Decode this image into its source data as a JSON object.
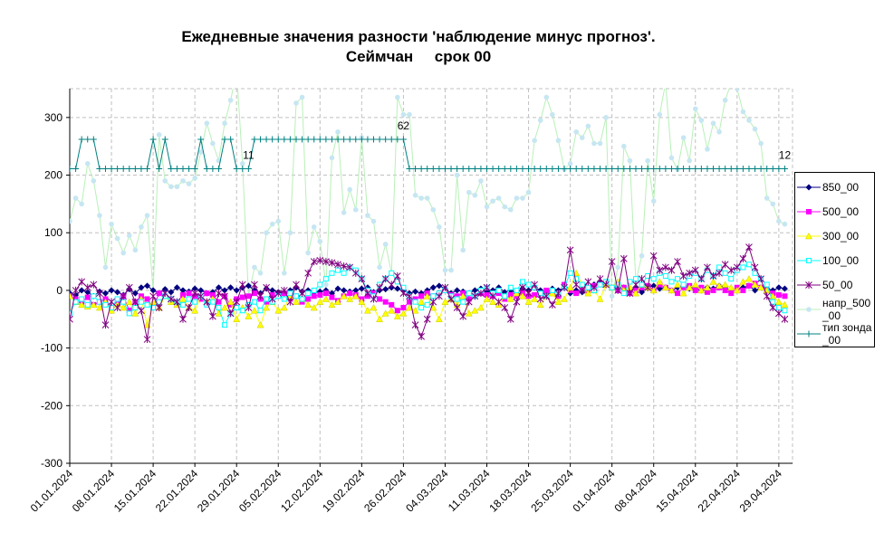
{
  "chart_data": {
    "type": "line",
    "title": "Ежедневные значения разности 'наблюдение минус прогноз'.",
    "subtitle": "Сеймчан     срок 00",
    "categories": [
      "01.01.2024",
      null,
      null,
      null,
      null,
      null,
      null,
      "08.01.2024",
      null,
      null,
      null,
      null,
      null,
      null,
      "15.01.2024",
      null,
      null,
      null,
      null,
      null,
      null,
      "22.01.2024",
      null,
      null,
      null,
      null,
      null,
      null,
      "29.01.2024",
      null,
      null,
      null,
      null,
      null,
      null,
      "05.02.2024",
      null,
      null,
      null,
      null,
      null,
      null,
      "12.02.2024",
      null,
      null,
      null,
      null,
      null,
      null,
      "19.02.2024",
      null,
      null,
      null,
      null,
      null,
      null,
      "26.02.2024",
      null,
      null,
      null,
      null,
      null,
      null,
      "04.03.2024",
      null,
      null,
      null,
      null,
      null,
      null,
      "11.03.2024",
      null,
      null,
      null,
      null,
      null,
      null,
      "18.03.2024",
      null,
      null,
      null,
      null,
      null,
      null,
      "25.03.2024",
      null,
      null,
      null,
      null,
      null,
      null,
      "01.04.2024",
      null,
      null,
      null,
      null,
      null,
      null,
      "08.04.2024",
      null,
      null,
      null,
      null,
      null,
      null,
      "15.04.2024",
      null,
      null,
      null,
      null,
      null,
      null,
      "22.04.2024",
      null,
      null,
      null,
      null,
      null,
      null,
      "29.04.2024",
      null
    ],
    "ylim": [
      -300,
      350
    ],
    "yticks": [
      -300,
      -200,
      -100,
      0,
      100,
      200,
      300
    ],
    "grid": true,
    "legend": "right",
    "series": [
      {
        "name": "850_00",
        "color": "#000080",
        "marker": "diamond",
        "values": [
          -5,
          -8,
          0,
          -3,
          -10,
          -2,
          -5,
          0,
          -3,
          -8,
          2,
          -5,
          5,
          8,
          0,
          -5,
          2,
          -3,
          5,
          0,
          -2,
          3,
          0,
          -5,
          -3,
          5,
          0,
          5,
          0,
          5,
          8,
          0,
          -5,
          3,
          0,
          -3,
          -5,
          0,
          5,
          -2,
          0,
          -3,
          -2,
          0,
          -5,
          3,
          0,
          -2,
          0,
          3,
          5,
          -3,
          0,
          2,
          5,
          3,
          0,
          -5,
          -2,
          -5,
          0,
          5,
          8,
          3,
          -5,
          0,
          -2,
          -5,
          0,
          3,
          -3,
          0,
          5,
          -3,
          0,
          -5,
          3,
          0,
          5,
          0,
          -3,
          3,
          0,
          5,
          -5,
          0,
          -3,
          5,
          10,
          15,
          10,
          5,
          8,
          5,
          0,
          5,
          -3,
          5,
          8,
          3,
          5,
          0,
          5,
          8,
          3,
          5,
          0,
          5,
          3,
          8,
          5,
          0,
          3,
          5,
          8,
          0,
          5,
          3,
          0,
          5,
          3
        ]
      },
      {
        "name": "500_00",
        "color": "#ff00ff",
        "marker": "square",
        "values": [
          -10,
          -15,
          -20,
          -12,
          -25,
          -20,
          -15,
          -30,
          -18,
          -10,
          -35,
          -20,
          -10,
          -15,
          -30,
          -5,
          -10,
          -15,
          -20,
          -8,
          -5,
          -10,
          -15,
          -5,
          -8,
          -20,
          -10,
          -25,
          -15,
          -12,
          -10,
          -5,
          -15,
          -20,
          -8,
          -10,
          -5,
          -15,
          -10,
          -20,
          -15,
          -10,
          -8,
          -5,
          -12,
          -18,
          -10,
          -5,
          -8,
          -15,
          -10,
          -5,
          -15,
          -20,
          -25,
          -35,
          -30,
          -20,
          -15,
          -10,
          -5,
          -10,
          -5,
          0,
          -8,
          -10,
          -5,
          -15,
          -10,
          -5,
          -8,
          -10,
          -5,
          -15,
          -8,
          -10,
          -5,
          -10,
          -8,
          -5,
          0,
          -5,
          -10,
          10,
          0,
          -5,
          5,
          0,
          8,
          10,
          12,
          5,
          0,
          5,
          -5,
          0,
          5,
          8,
          0,
          10,
          5,
          0,
          -5,
          5,
          8,
          0,
          5,
          -3,
          0,
          5,
          0,
          -5,
          5,
          0,
          8,
          12,
          5,
          0,
          -5,
          -8,
          -10
        ]
      },
      {
        "name": "300_00",
        "color": "#ffff00",
        "marker": "triangle",
        "values": [
          -10,
          -20,
          -25,
          -28,
          -25,
          -30,
          -20,
          -35,
          -25,
          -30,
          -20,
          -40,
          -15,
          -60,
          -20,
          -30,
          -10,
          -20,
          -25,
          -15,
          -30,
          -35,
          -10,
          -20,
          -15,
          -40,
          -30,
          -20,
          -50,
          -30,
          -45,
          -35,
          -60,
          -30,
          -20,
          -35,
          -30,
          -10,
          -20,
          -15,
          -25,
          -30,
          -20,
          -15,
          -25,
          -20,
          -10,
          -15,
          -10,
          -20,
          -35,
          -30,
          -50,
          -40,
          -35,
          -45,
          -40,
          -30,
          -35,
          -20,
          -10,
          -30,
          -50,
          -20,
          -15,
          -25,
          -10,
          -40,
          -35,
          -30,
          -15,
          -20,
          -25,
          -10,
          -15,
          -5,
          -10,
          -20,
          -15,
          -25,
          -10,
          -5,
          -20,
          -15,
          5,
          30,
          10,
          -5,
          0,
          -15,
          10,
          5,
          15,
          0,
          5,
          -5,
          10,
          5,
          0,
          15,
          5,
          0,
          10,
          -5,
          5,
          10,
          0,
          5,
          15,
          8,
          10,
          5,
          0,
          15,
          20,
          10,
          5,
          0,
          -10,
          -20,
          -25
        ]
      },
      {
        "name": "100_00",
        "color": "#00ffff",
        "marker": "square-open",
        "values": [
          -40,
          -20,
          -15,
          -25,
          -10,
          -20,
          -25,
          -30,
          -15,
          -20,
          -40,
          -30,
          -20,
          -25,
          -30,
          -20,
          -10,
          -15,
          -20,
          -25,
          -15,
          -20,
          -10,
          -25,
          -20,
          -30,
          -60,
          -40,
          -30,
          -35,
          -25,
          -20,
          -35,
          -15,
          -20,
          -10,
          -15,
          -5,
          -10,
          -15,
          -5,
          0,
          10,
          20,
          30,
          35,
          30,
          40,
          35,
          20,
          0,
          -10,
          10,
          20,
          30,
          15,
          5,
          -10,
          -20,
          -30,
          -25,
          -10,
          -5,
          0,
          -10,
          -15,
          -20,
          -5,
          -10,
          0,
          5,
          -5,
          0,
          -10,
          5,
          0,
          15,
          10,
          5,
          -5,
          -10,
          0,
          -5,
          5,
          30,
          20,
          10,
          5,
          0,
          10,
          15,
          5,
          10,
          -5,
          15,
          20,
          10,
          25,
          20,
          30,
          25,
          15,
          20,
          10,
          25,
          30,
          20,
          35,
          25,
          40,
          30,
          20,
          35,
          40,
          45,
          30,
          20,
          10,
          -20,
          -30,
          -35
        ]
      },
      {
        "name": "50_00",
        "color": "#800080",
        "marker": "star",
        "values": [
          -50,
          0,
          15,
          5,
          10,
          -5,
          -60,
          -20,
          -30,
          -10,
          5,
          -20,
          -35,
          -85,
          -10,
          -30,
          -5,
          -15,
          -20,
          -50,
          -30,
          -5,
          -10,
          -20,
          -45,
          -5,
          -10,
          -40,
          -20,
          10,
          -30,
          10,
          -10,
          5,
          -15,
          -5,
          0,
          -20,
          10,
          -5,
          30,
          50,
          52,
          50,
          48,
          45,
          42,
          40,
          30,
          20,
          -5,
          -15,
          5,
          20,
          10,
          25,
          -5,
          -10,
          -60,
          -80,
          -50,
          -20,
          -10,
          5,
          -15,
          -30,
          -45,
          -20,
          -10,
          -5,
          5,
          -10,
          -20,
          -30,
          -50,
          -20,
          5,
          -5,
          10,
          -15,
          -10,
          -25,
          -5,
          5,
          70,
          10,
          0,
          15,
          5,
          20,
          10,
          50,
          0,
          55,
          -5,
          10,
          20,
          5,
          60,
          35,
          40,
          35,
          50,
          25,
          30,
          35,
          20,
          40,
          25,
          30,
          45,
          35,
          40,
          55,
          75,
          40,
          20,
          -10,
          -30,
          -40,
          -50
        ]
      },
      {
        "name": "напр_500_00",
        "color": "#c6e6f2",
        "line_color": "#b8f0b8",
        "marker": "circle",
        "values": [
          120,
          160,
          150,
          220,
          190,
          130,
          40,
          115,
          90,
          65,
          95,
          70,
          110,
          130,
          0,
          270,
          190,
          180,
          180,
          190,
          185,
          195,
          240,
          290,
          255,
          225,
          290,
          330,
          380,
          220,
          -10,
          40,
          30,
          100,
          115,
          120,
          30,
          100,
          325,
          335,
          65,
          110,
          85,
          10,
          230,
          275,
          135,
          175,
          140,
          265,
          130,
          120,
          40,
          80,
          30,
          335,
          305,
          305,
          165,
          160,
          160,
          140,
          110,
          35,
          35,
          200,
          70,
          170,
          165,
          190,
          145,
          155,
          160,
          145,
          140,
          160,
          160,
          170,
          260,
          295,
          335,
          305,
          260,
          210,
          220,
          275,
          265,
          285,
          255,
          255,
          300,
          -10,
          40,
          250,
          225,
          15,
          60,
          225,
          155,
          305,
          360,
          230,
          210,
          265,
          225,
          315,
          295,
          245,
          290,
          275,
          330,
          360,
          350,
          310,
          295,
          280,
          255,
          160,
          150,
          120,
          115
        ]
      },
      {
        "name": "тип зонда_00",
        "color": "#008080",
        "marker": "plus",
        "values": [
          211,
          211,
          262,
          262,
          262,
          211,
          211,
          211,
          211,
          211,
          211,
          211,
          211,
          211,
          262,
          211,
          262,
          211,
          211,
          211,
          211,
          211,
          262,
          211,
          211,
          211,
          262,
          262,
          211,
          211,
          211,
          262,
          262,
          262,
          262,
          262,
          262,
          262,
          262,
          262,
          262,
          262,
          262,
          262,
          262,
          262,
          262,
          262,
          262,
          262,
          262,
          262,
          262,
          262,
          262,
          262,
          262,
          211,
          211,
          211,
          211,
          211,
          211,
          211,
          211,
          211,
          211,
          211,
          211,
          211,
          211,
          211,
          211,
          211,
          211,
          211,
          211,
          211,
          211,
          211,
          211,
          211,
          211,
          211,
          211,
          211,
          211,
          211,
          211,
          211,
          211,
          211,
          211,
          211,
          211,
          211,
          211,
          211,
          211,
          211,
          211,
          211,
          211,
          211,
          211,
          211,
          211,
          211,
          211,
          211,
          211,
          211,
          211,
          211,
          211,
          211,
          211,
          211,
          211,
          211,
          211
        ]
      }
    ],
    "annotations": [
      {
        "text": "11",
        "series": 6,
        "point": 30
      },
      {
        "text": "62",
        "series": 6,
        "point": 56
      },
      {
        "text": "12",
        "series": 6,
        "point": 120
      }
    ]
  }
}
